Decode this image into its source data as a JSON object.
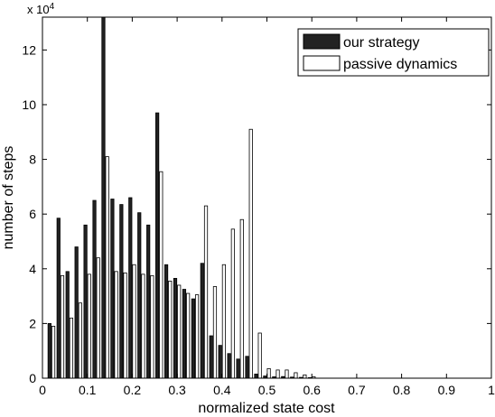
{
  "chart_data": {
    "type": "bar",
    "title": "",
    "xlabel": "normalized state cost",
    "ylabel": "number of steps",
    "y_multiplier_label": "x 10",
    "y_multiplier_exponent": "4",
    "xlim": [
      0,
      1
    ],
    "ylim": [
      0,
      13.2
    ],
    "y_units": "x 10^4",
    "xticks": [
      "0",
      "0.1",
      "0.2",
      "0.3",
      "0.4",
      "0.5",
      "0.6",
      "0.7",
      "0.8",
      "0.9",
      "1"
    ],
    "yticks": [
      "0",
      "2",
      "4",
      "6",
      "8",
      "10",
      "12"
    ],
    "grid": false,
    "legend_position": "top-right",
    "bin_centers": [
      0.02,
      0.04,
      0.06,
      0.08,
      0.1,
      0.12,
      0.14,
      0.16,
      0.18,
      0.2,
      0.22,
      0.24,
      0.26,
      0.28,
      0.3,
      0.32,
      0.34,
      0.36,
      0.38,
      0.4,
      0.42,
      0.44,
      0.46,
      0.48,
      0.5,
      0.52,
      0.54,
      0.56,
      0.58,
      0.6,
      0.62,
      0.64,
      0.66,
      0.68,
      0.7,
      0.72
    ],
    "series": [
      {
        "name": "our strategy",
        "color": "#222222",
        "values": [
          2.0,
          5.85,
          3.9,
          4.8,
          5.6,
          6.5,
          13.2,
          6.55,
          6.35,
          6.6,
          6.05,
          5.6,
          9.7,
          4.15,
          3.65,
          3.25,
          2.9,
          4.2,
          1.55,
          1.2,
          0.9,
          0.7,
          0.8,
          0.15,
          0.08,
          0.05,
          0.06,
          0.04,
          0.03,
          0.02,
          0.0,
          0.0,
          0.0,
          0.0,
          0.0,
          0.0
        ]
      },
      {
        "name": "passive dynamics",
        "color": "#ffffff",
        "values": [
          1.9,
          3.75,
          2.2,
          2.75,
          3.8,
          4.4,
          8.1,
          3.9,
          3.85,
          4.15,
          3.8,
          3.75,
          7.55,
          3.55,
          3.4,
          3.1,
          3.05,
          6.3,
          3.35,
          4.15,
          5.45,
          5.8,
          9.1,
          1.65,
          0.35,
          0.3,
          0.3,
          0.2,
          0.12,
          0.05,
          0.0,
          0.0,
          0.0,
          0.0,
          0.0,
          0.0
        ]
      }
    ]
  }
}
